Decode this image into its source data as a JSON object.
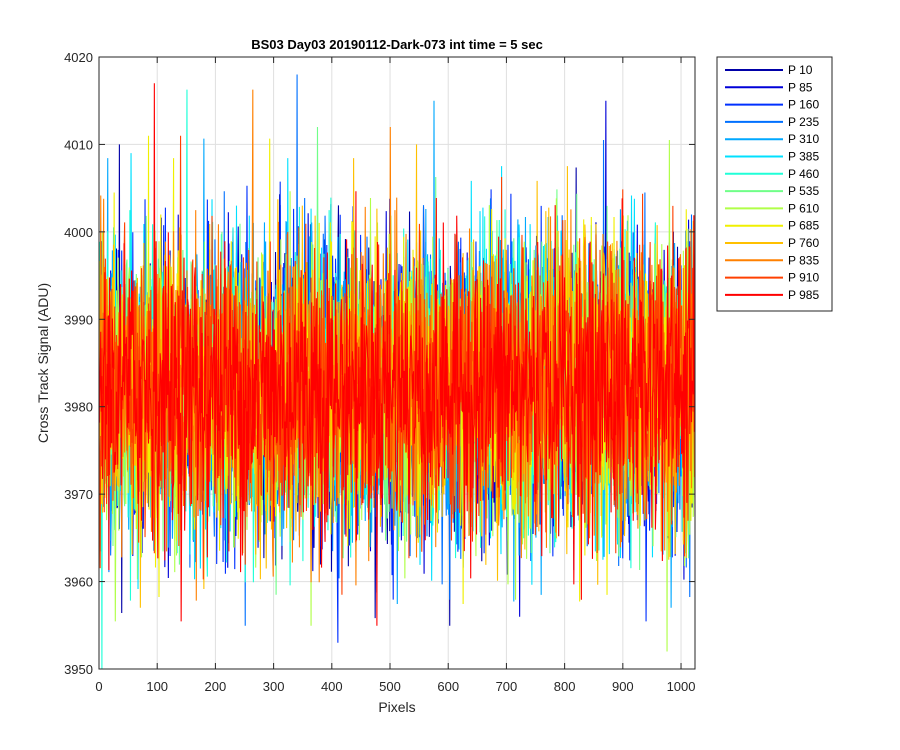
{
  "chart_data": {
    "type": "line",
    "title": "BS03 Day03 20190112-Dark-073 int time = 5 sec",
    "xlabel": "Pixels",
    "ylabel": "Cross Track Signal (ADU)",
    "xlim": [
      0,
      1024
    ],
    "ylim": [
      3950,
      4020
    ],
    "xticks": [
      0,
      100,
      200,
      300,
      400,
      500,
      600,
      700,
      800,
      900,
      1000
    ],
    "yticks": [
      3950,
      3960,
      3970,
      3980,
      3990,
      4000,
      4010,
      4020
    ],
    "grid": true,
    "legend_position": "outside-top-right",
    "noise_model": {
      "n_points": 1024,
      "mean": 3982,
      "std_dev": 8
    },
    "series": [
      {
        "name": "P 10",
        "color": "#0000a8",
        "peak": {
          "x": 35,
          "y": 4010
        }
      },
      {
        "name": "P 85",
        "color": "#0000d8",
        "peak": {
          "x": 870,
          "y": 4015
        }
      },
      {
        "name": "P 160",
        "color": "#0030ff",
        "peak": {
          "x": 410,
          "y": 3953
        }
      },
      {
        "name": "P 235",
        "color": "#0070ff",
        "peak": {
          "x": 340,
          "y": 4018
        }
      },
      {
        "name": "P 310",
        "color": "#00a8ff",
        "peak": {
          "x": 575,
          "y": 4015
        }
      },
      {
        "name": "P 385",
        "color": "#00e0ff",
        "peak": {
          "x": 55,
          "y": 4009
        }
      },
      {
        "name": "P 460",
        "color": "#20ffd8",
        "peak": {
          "x": 5,
          "y": 3950
        }
      },
      {
        "name": "P 535",
        "color": "#70ff88",
        "peak": {
          "x": 375,
          "y": 4012
        }
      },
      {
        "name": "P 610",
        "color": "#b0ff48",
        "peak": {
          "x": 975,
          "y": 3952
        }
      },
      {
        "name": "P 685",
        "color": "#f0f000",
        "peak": {
          "x": 85,
          "y": 4011
        }
      },
      {
        "name": "P 760",
        "color": "#ffc000",
        "peak": {
          "x": 545,
          "y": 4010
        }
      },
      {
        "name": "P 835",
        "color": "#ff8000",
        "peak": {
          "x": 500,
          "y": 4012
        }
      },
      {
        "name": "P 910",
        "color": "#ff4000",
        "peak": {
          "x": 140,
          "y": 4011
        }
      },
      {
        "name": "P 985",
        "color": "#ff0000",
        "peak": {
          "x": 95,
          "y": 4017
        }
      }
    ]
  }
}
